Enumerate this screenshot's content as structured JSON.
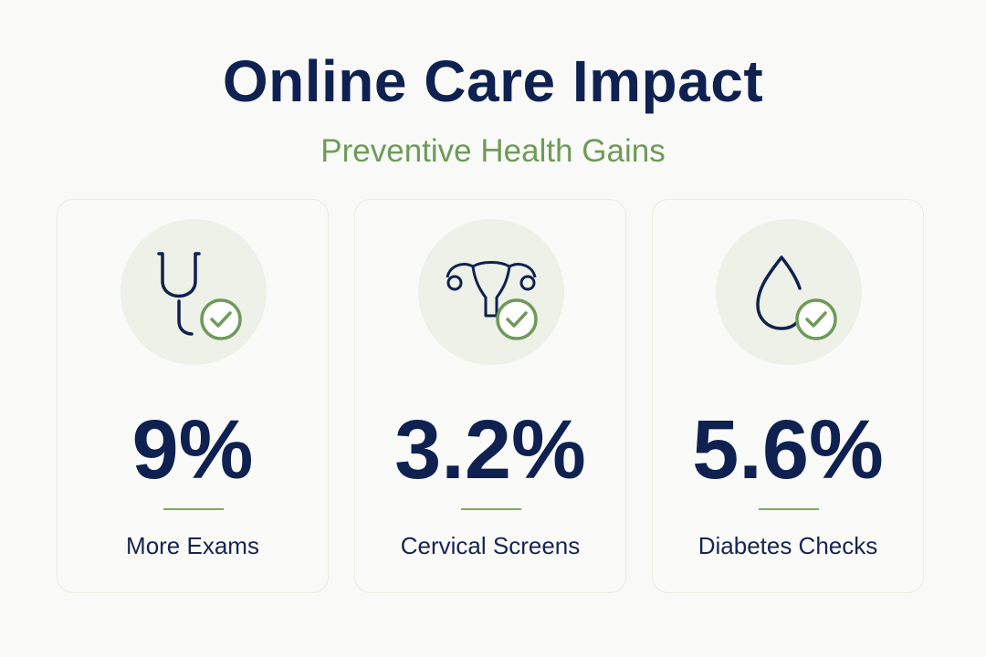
{
  "header": {
    "title": "Online Care Impact",
    "subtitle": "Preventive Health Gains"
  },
  "cards": [
    {
      "stat": "9%",
      "label": "More Exams"
    },
    {
      "stat": "3.2%",
      "label": "Cervical Screens"
    },
    {
      "stat": "5.6%",
      "label": "Diabetes Checks"
    }
  ]
}
